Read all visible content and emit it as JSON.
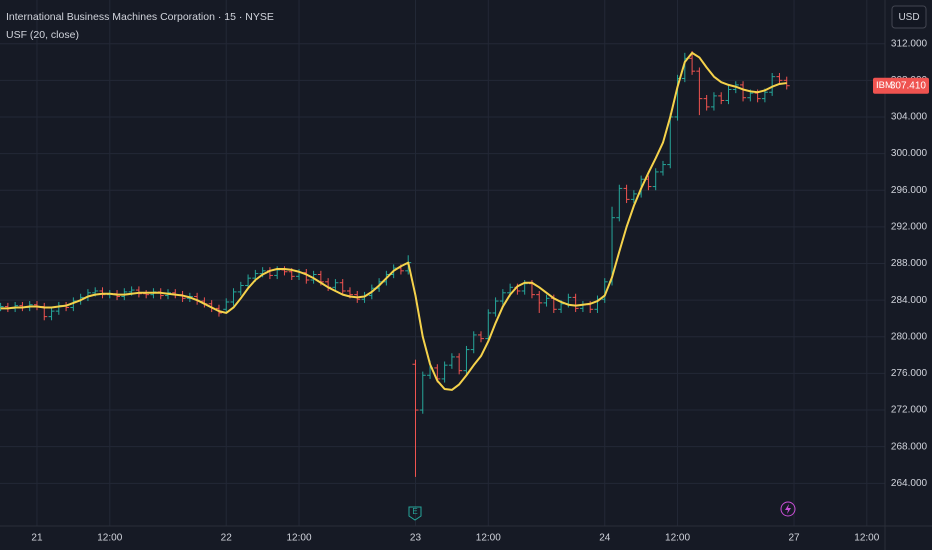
{
  "chart_data": {
    "type": "ohlc",
    "title": "International Business Machines Corporation · 15 · NYSE",
    "indicator_label": "USF (20, close)",
    "currency": "USD",
    "symbol": "IBM",
    "price_label": "307.410",
    "annotations": [
      "E"
    ],
    "up_color": "#26a69a",
    "down_color": "#ef5350",
    "grid": true,
    "x": [
      -5,
      -4,
      -3,
      -2,
      -1,
      0,
      1,
      2,
      3,
      4,
      5,
      6,
      7,
      8,
      9,
      10,
      11,
      12,
      13,
      14,
      15,
      16,
      17,
      18,
      19,
      20,
      21,
      22,
      23,
      24,
      25,
      26,
      27,
      28,
      29,
      30,
      31,
      32,
      33,
      34,
      35,
      36,
      37,
      38,
      39,
      40,
      41,
      42,
      43,
      44,
      45,
      46,
      47,
      48,
      49,
      50,
      51,
      52,
      53,
      54,
      55,
      56,
      57,
      58,
      59,
      60,
      61,
      62,
      63,
      64,
      65,
      66,
      67,
      68,
      69,
      70,
      71,
      72,
      73,
      74,
      75,
      76,
      77,
      78,
      79,
      80,
      81,
      82,
      83,
      84,
      85,
      86,
      87,
      88,
      89,
      90,
      91,
      92,
      93,
      94,
      95,
      96,
      97,
      98,
      99,
      100,
      101,
      102,
      103
    ],
    "open": [
      283.2,
      283.3,
      283.1,
      283.4,
      283.2,
      283.5,
      283.3,
      282.2,
      282.8,
      283.4,
      283.2,
      283.9,
      284.3,
      284.8,
      285.0,
      284.6,
      284.7,
      284.4,
      284.9,
      285.1,
      284.7,
      284.6,
      284.9,
      284.5,
      284.8,
      284.6,
      284.2,
      284.4,
      283.9,
      283.6,
      283.1,
      283.0,
      283.8,
      284.9,
      285.6,
      286.4,
      286.9,
      287.2,
      286.7,
      287.3,
      287.1,
      286.6,
      287.0,
      286.2,
      286.8,
      286.0,
      285.4,
      285.9,
      285.0,
      284.6,
      284.1,
      284.5,
      285.3,
      286.0,
      286.8,
      287.5,
      287.2,
      277.0,
      272.0,
      275.8,
      276.6,
      275.4,
      276.9,
      277.8,
      276.3,
      278.6,
      280.2,
      279.8,
      282.6,
      283.9,
      284.8,
      285.4,
      285.0,
      285.8,
      284.6,
      283.7,
      284.2,
      283.0,
      283.6,
      284.3,
      283.1,
      283.5,
      283.0,
      284.1,
      286.0,
      293.0,
      296.2,
      295.0,
      295.6,
      297.2,
      296.4,
      298.0,
      298.8,
      304.0,
      308.2,
      310.4,
      309.0,
      306.0,
      305.1,
      306.3,
      305.8,
      307.0,
      307.5,
      306.1,
      306.6,
      306.0,
      306.7,
      308.4,
      308.0
    ],
    "high": [
      283.7,
      283.7,
      283.8,
      283.8,
      283.9,
      283.9,
      283.7,
      283.2,
      283.8,
      283.8,
      284.3,
      284.7,
      285.2,
      285.4,
      285.4,
      285.1,
      285.1,
      285.3,
      285.5,
      285.5,
      285.1,
      285.3,
      285.3,
      285.2,
      285.2,
      285.0,
      284.8,
      284.8,
      284.3,
      284.0,
      283.5,
      284.2,
      285.3,
      286.0,
      286.8,
      287.3,
      287.6,
      287.6,
      287.7,
      287.7,
      287.5,
      287.4,
      287.4,
      287.2,
      287.2,
      286.4,
      286.3,
      286.3,
      285.4,
      285.0,
      284.9,
      285.7,
      286.4,
      287.2,
      287.9,
      287.9,
      288.9,
      277.5,
      276.2,
      277.4,
      277.0,
      277.3,
      278.2,
      278.2,
      279.0,
      280.6,
      280.6,
      283.0,
      284.3,
      285.2,
      285.8,
      285.8,
      286.2,
      286.2,
      285.0,
      284.6,
      284.6,
      284.0,
      284.7,
      284.7,
      283.9,
      283.9,
      284.5,
      286.4,
      294.2,
      296.6,
      296.6,
      296.0,
      297.6,
      297.6,
      298.4,
      299.2,
      304.4,
      308.6,
      311.0,
      311.2,
      309.4,
      306.4,
      306.7,
      306.7,
      307.4,
      307.9,
      307.9,
      307.0,
      307.0,
      307.1,
      308.8,
      308.8,
      308.4
    ],
    "low": [
      282.8,
      282.7,
      282.7,
      282.8,
      282.8,
      282.9,
      281.8,
      281.8,
      282.4,
      282.8,
      282.8,
      283.5,
      283.9,
      284.4,
      284.2,
      284.2,
      284.0,
      284.0,
      284.5,
      284.3,
      284.2,
      284.2,
      284.1,
      284.1,
      284.2,
      283.8,
      283.8,
      283.5,
      283.2,
      282.7,
      282.2,
      282.6,
      283.4,
      284.5,
      285.2,
      286.0,
      286.5,
      286.3,
      286.3,
      286.7,
      286.2,
      286.2,
      285.8,
      285.8,
      285.6,
      285.0,
      285.0,
      284.6,
      284.2,
      283.7,
      283.7,
      284.1,
      284.9,
      285.6,
      286.4,
      286.8,
      286.8,
      264.7,
      271.6,
      275.4,
      275.0,
      275.0,
      276.5,
      275.9,
      275.9,
      278.2,
      279.4,
      279.4,
      282.2,
      283.5,
      284.4,
      284.6,
      284.6,
      284.2,
      282.6,
      283.3,
      282.6,
      282.6,
      283.2,
      282.7,
      282.7,
      282.6,
      282.6,
      283.7,
      285.6,
      292.6,
      294.6,
      294.6,
      295.2,
      296.0,
      296.0,
      297.6,
      298.4,
      303.6,
      307.8,
      308.6,
      304.2,
      304.7,
      304.7,
      305.4,
      305.4,
      306.6,
      305.7,
      305.7,
      305.6,
      305.6,
      306.3,
      307.6,
      307.0
    ],
    "close": [
      283.3,
      283.1,
      283.4,
      283.2,
      283.5,
      283.3,
      282.2,
      282.8,
      283.4,
      283.2,
      283.9,
      284.3,
      284.8,
      285.0,
      284.6,
      284.7,
      284.4,
      284.9,
      285.1,
      284.7,
      284.6,
      284.9,
      284.5,
      284.8,
      284.6,
      284.2,
      284.4,
      283.9,
      283.6,
      283.1,
      282.6,
      283.8,
      284.9,
      285.6,
      286.4,
      286.9,
      287.2,
      286.7,
      287.3,
      287.1,
      286.6,
      287.0,
      286.2,
      286.8,
      286.0,
      285.4,
      285.9,
      285.0,
      284.6,
      284.1,
      284.5,
      285.3,
      286.0,
      286.8,
      287.5,
      287.2,
      288.1,
      272.0,
      275.8,
      276.6,
      275.4,
      276.9,
      277.8,
      276.3,
      278.6,
      280.2,
      279.8,
      282.6,
      283.9,
      284.8,
      285.4,
      285.0,
      285.8,
      284.6,
      283.7,
      284.2,
      283.0,
      283.6,
      284.3,
      283.1,
      283.5,
      283.0,
      284.1,
      286.0,
      293.0,
      296.2,
      295.0,
      295.6,
      297.2,
      296.4,
      298.0,
      298.8,
      304.0,
      308.2,
      310.4,
      309.0,
      306.0,
      305.1,
      306.3,
      305.8,
      307.0,
      307.5,
      306.1,
      306.6,
      306.0,
      306.7,
      308.4,
      308.0,
      307.41
    ],
    "series": [
      {
        "color": "#f5d24b",
        "values": [
          283.1,
          283.1,
          283.2,
          283.2,
          283.3,
          283.3,
          283.2,
          283.2,
          283.3,
          283.4,
          283.7,
          284.0,
          284.4,
          284.6,
          284.7,
          284.7,
          284.6,
          284.6,
          284.7,
          284.8,
          284.8,
          284.8,
          284.8,
          284.7,
          284.6,
          284.5,
          284.3,
          284.0,
          283.6,
          283.2,
          282.8,
          282.6,
          283.2,
          284.2,
          285.3,
          286.2,
          286.8,
          287.2,
          287.4,
          287.4,
          287.3,
          287.1,
          286.8,
          286.4,
          285.9,
          285.4,
          285.0,
          284.6,
          284.4,
          284.3,
          284.4,
          284.9,
          285.6,
          286.4,
          287.2,
          287.7,
          288.1,
          284.5,
          280.0,
          277.0,
          275.2,
          274.3,
          274.2,
          274.8,
          275.8,
          276.9,
          277.9,
          279.5,
          281.5,
          283.3,
          284.6,
          285.5,
          285.9,
          285.9,
          285.4,
          284.8,
          284.2,
          283.8,
          283.5,
          283.4,
          283.5,
          283.6,
          283.9,
          284.5,
          286.5,
          289.3,
          292.0,
          294.3,
          296.2,
          297.9,
          299.5,
          301.2,
          304.0,
          307.3,
          310.0,
          311.0,
          310.5,
          309.4,
          308.4,
          307.8,
          307.5,
          307.3,
          307.0,
          306.8,
          306.7,
          306.9,
          307.3,
          307.6,
          307.7
        ]
      }
    ],
    "xlim": [
      -5.08,
      116.5
    ],
    "xticks": [
      {
        "value": 0,
        "label": "21"
      },
      {
        "value": 10,
        "label": "12:00"
      },
      {
        "value": 26,
        "label": "22"
      },
      {
        "value": 36,
        "label": "12:00"
      },
      {
        "value": 52,
        "label": "23"
      },
      {
        "value": 62,
        "label": "12:00"
      },
      {
        "value": 78,
        "label": "24"
      },
      {
        "value": 88,
        "label": "12:00"
      },
      {
        "value": 104,
        "label": "27"
      },
      {
        "value": 114,
        "label": "12:00"
      }
    ],
    "ylim": [
      259.34,
      316.77
    ],
    "yticks": [
      {
        "value": 264,
        "label": "264.000"
      },
      {
        "value": 268,
        "label": "268.000"
      },
      {
        "value": 272,
        "label": "272.000"
      },
      {
        "value": 276,
        "label": "276.000"
      },
      {
        "value": 280,
        "label": "280.000"
      },
      {
        "value": 284,
        "label": "284.000"
      },
      {
        "value": 288,
        "label": "288.000"
      },
      {
        "value": 292,
        "label": "292.000"
      },
      {
        "value": 296,
        "label": "296.000"
      },
      {
        "value": 300,
        "label": "300.000"
      },
      {
        "value": 304,
        "label": "304.000"
      },
      {
        "value": 308,
        "label": "308.000"
      },
      {
        "value": 312,
        "label": "312.000"
      }
    ]
  }
}
